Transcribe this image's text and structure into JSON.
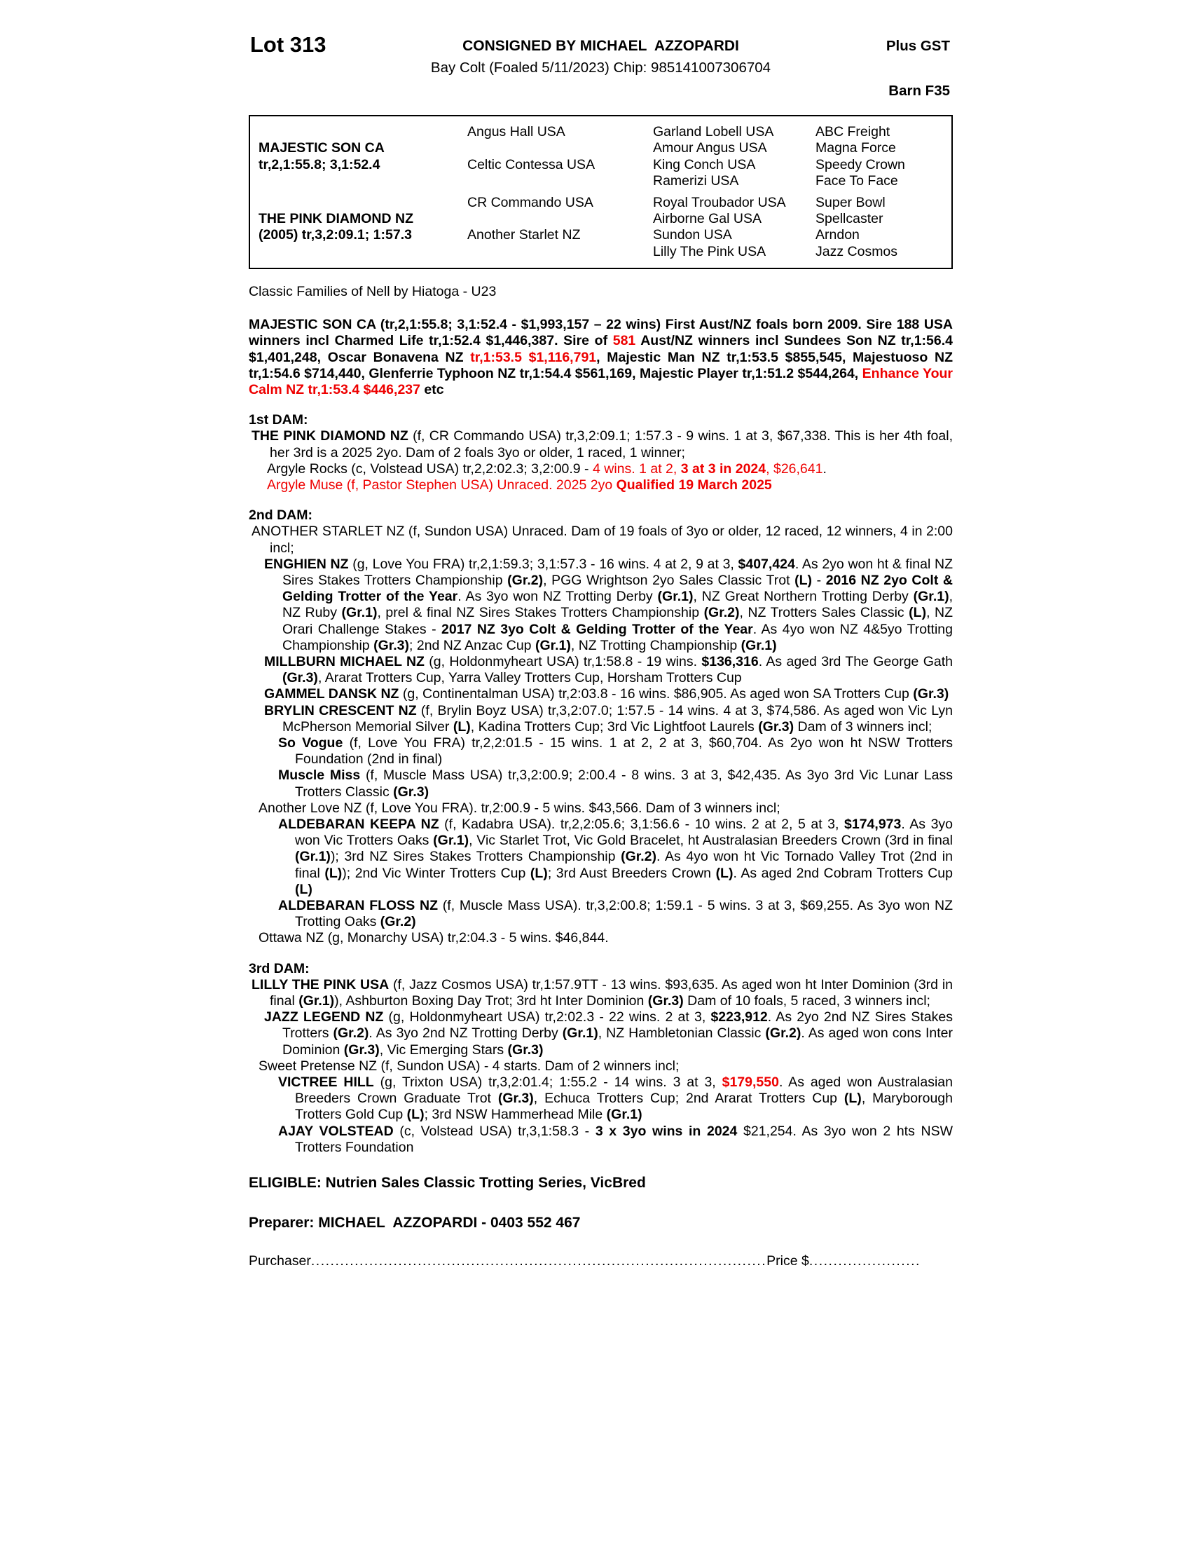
{
  "accent_red": "#ee0000",
  "header": {
    "lot": "Lot 313",
    "consigned": "CONSIGNED BY MICHAEL  AZZOPARDI",
    "description": "Bay Colt (Foaled 5/11/2023) Chip: 985141007306704",
    "plus_gst": "Plus GST",
    "barn": "Barn F35"
  },
  "pedigree": {
    "sire": {
      "name": "MAJESTIC SON CA",
      "record": "tr,2,1:55.8; 3,1:52.4"
    },
    "dam": {
      "name": "THE PINK DIAMOND NZ",
      "record": "(2005) tr,3,2:09.1; 1:57.3"
    },
    "gen2": [
      "Angus Hall USA",
      "Celtic Contessa USA",
      "CR Commando USA",
      "Another Starlet NZ"
    ],
    "gen3": [
      "Garland Lobell USA",
      "Amour Angus USA",
      "King Conch USA",
      "Ramerizi USA",
      "Royal Troubador USA",
      "Airborne Gal USA",
      "Sundon USA",
      "Lilly The Pink USA"
    ],
    "gen4": [
      "ABC Freight",
      "Magna Force",
      "Speedy Crown",
      "Face To Face",
      "Super Bowl",
      "Spellcaster",
      "Arndon",
      "Jazz Cosmos"
    ]
  },
  "family_line": "Classic Families of Nell by Hiatoga - U23",
  "sire_para": [
    "MAJESTIC SON CA (tr,2,1:55.8; 3,1:52.4 - $1,993,157 – 22 wins) First Aust/NZ foals born 2009. Sire 188 USA winners incl Charmed Life tr,1:52.4 $1,446,387. Sire of ",
    "581",
    " Aust/NZ winners incl Sundees Son NZ tr,1:56.4 $1,401,248, Oscar Bonavena NZ ",
    "tr,1:53.5 $1,116,791",
    ", Majestic Man NZ tr,1:53.5 $855,545, Majestuoso NZ tr,1:54.6 $714,440, Glenferrie Typhoon NZ tr,1:54.4 $561,169, Majestic Player tr,1:51.2 $544,264, ",
    "Enhance Your Calm NZ tr,1:53.4 $446,237",
    " etc"
  ],
  "dam1": {
    "heading": "1st DAM:",
    "e1": [
      "THE PINK DIAMOND NZ",
      " (f, CR Commando USA) tr,3,2:09.1; 1:57.3 - 9 wins. 1 at 3, $67,338. This is her 4th foal, her 3rd is a 2025 2yo. Dam of 2 foals 3yo or older, 1 raced, 1 winner;"
    ],
    "e2": [
      "Argyle Rocks (c, Volstead USA) tr,2,2:02.3; 3,2:00.9 - ",
      "4 wins. 1 at 2, ",
      "3 at 3 in 2024",
      ", $26,641",
      "."
    ],
    "e3": [
      "Argyle Muse (f, Pastor Stephen USA) Unraced. 2025 2yo ",
      "Qualified 19 March 2025"
    ]
  },
  "dam2": {
    "heading": "2nd DAM:",
    "e1": [
      "ANOTHER STARLET NZ (f, Sundon USA) Unraced. Dam of 19 foals of 3yo or older, 12 raced, 12 winners, 4 in 2:00 incl;"
    ],
    "e2": [
      "ENGHIEN NZ",
      " (g, Love You FRA) tr,2,1:59.3; 3,1:57.3 - 16 wins. 4 at 2, 9 at 3, ",
      "$407,424",
      ". As 2yo won ht & final NZ Sires Stakes Trotters Championship ",
      "(Gr.2)",
      ", PGG Wrightson 2yo Sales Classic Trot ",
      "(L)",
      " - ",
      "2016 NZ 2yo Colt & Gelding Trotter of the Year",
      ". As 3yo won NZ Trotting Derby ",
      "(Gr.1)",
      ", NZ Great Northern Trotting Derby ",
      "(Gr.1)",
      ", NZ Ruby ",
      "(Gr.1)",
      ", prel & final NZ Sires Stakes Trotters Championship ",
      "(Gr.2)",
      ", NZ Trotters Sales Classic ",
      "(L)",
      ", NZ Orari Challenge Stakes - ",
      "2017 NZ 3yo Colt & Gelding Trotter of the Year",
      ". As 4yo won NZ 4&5yo Trotting Championship ",
      "(Gr.3)",
      "; 2nd NZ Anzac Cup ",
      "(Gr.1)",
      ", NZ Trotting Championship ",
      "(Gr.1)"
    ],
    "e3": [
      "MILLBURN MICHAEL NZ",
      " (g, Holdonmyheart USA) tr,1:58.8 - 19 wins. ",
      "$136,316",
      ". As aged 3rd The George Gath ",
      "(Gr.3)",
      ", Ararat Trotters Cup, Yarra Valley Trotters Cup, Horsham Trotters Cup"
    ],
    "e4": [
      "GAMMEL DANSK NZ",
      " (g, Continentalman USA) tr,2:03.8 - 16 wins. $86,905. As aged won SA Trotters Cup ",
      "(Gr.3)"
    ],
    "e5": [
      "BRYLIN CRESCENT NZ",
      " (f, Brylin Boyz USA) tr,3,2:07.0; 1:57.5 - 14 wins. 4 at 3, $74,586. As aged won Vic Lyn McPherson Memorial Silver ",
      "(L)",
      ", Kadina Trotters Cup; 3rd Vic Lightfoot Laurels ",
      "(Gr.3)",
      "  Dam of 3 winners incl;"
    ],
    "e6": [
      "So Vogue",
      " (f, Love You FRA) tr,2,2:01.5 - 15 wins. 1 at 2, 2 at 3, $60,704. As 2yo won ht NSW Trotters Foundation (2nd in final)"
    ],
    "e7": [
      "Muscle Miss",
      " (f, Muscle Mass USA) tr,3,2:00.9; 2:00.4 - 8 wins. 3 at 3, $42,435. As 3yo 3rd Vic Lunar Lass Trotters Classic ",
      "(Gr.3)"
    ],
    "e8": [
      "Another Love NZ (f, Love You FRA). tr,2:00.9 - 5 wins. $43,566. Dam of 3 winners incl;"
    ],
    "e9": [
      "ALDEBARAN KEEPA NZ",
      " (f, Kadabra USA). tr,2,2:05.6; 3,1:56.6 - 10 wins. 2 at 2, 5 at 3, ",
      "$174,973",
      ". As 3yo won Vic Trotters Oaks ",
      "(Gr.1)",
      ", Vic Starlet Trot, Vic Gold Bracelet, ht Australasian Breeders Crown (3rd in final ",
      "(Gr.1)",
      "); 3rd NZ Sires Stakes Trotters Championship ",
      "(Gr.2)",
      ". As 4yo won ht Vic Tornado Valley Trot (2nd in final ",
      "(L)",
      "); 2nd Vic Winter Trotters Cup ",
      "(L)",
      "; 3rd Aust Breeders Crown ",
      "(L)",
      ". As aged 2nd Cobram Trotters Cup ",
      "(L)"
    ],
    "e10": [
      "ALDEBARAN FLOSS NZ",
      " (f, Muscle Mass USA). tr,3,2:00.8; 1:59.1 - 5 wins. 3 at 3, $69,255. As 3yo won NZ Trotting Oaks ",
      "(Gr.2)"
    ],
    "e11": [
      "Ottawa NZ (g, Monarchy USA) tr,2:04.3 - 5 wins. $46,844."
    ]
  },
  "dam3": {
    "heading": "3rd DAM:",
    "e1": [
      "LILLY THE PINK USA",
      " (f, Jazz Cosmos USA) tr,1:57.9TT - 13 wins. $93,635. As aged won ht Inter Dominion (3rd in final ",
      "(Gr.1)",
      "), Ashburton Boxing Day Trot; 3rd ht Inter Dominion ",
      "(Gr.3)",
      " Dam of 10 foals, 5 raced, 3 winners incl;"
    ],
    "e2": [
      "JAZZ LEGEND NZ",
      " (g, Holdonmyheart USA) tr,2:02.3 - 22 wins. 2 at 3, ",
      "$223,912",
      ". As 2yo 2nd NZ Sires Stakes Trotters ",
      "(Gr.2)",
      ". As 3yo 2nd NZ Trotting Derby ",
      "(Gr.1)",
      ", NZ Hambletonian Classic ",
      "(Gr.2)",
      ". As aged won cons Inter Dominion ",
      "(Gr.3)",
      ", Vic Emerging Stars  ",
      "(Gr.3)"
    ],
    "e3": [
      "Sweet Pretense NZ (f, Sundon USA) - 4 starts. Dam of 2 winners incl;"
    ],
    "e4": [
      "VICTREE HILL",
      " (g, Trixton USA) tr,3,2:01.4; 1:55.2 - 14 wins. 3 at 3, ",
      "$179,550",
      ". As aged won Australasian Breeders Crown Graduate Trot ",
      "(Gr.3)",
      ", Echuca Trotters Cup; 2nd Ararat Trotters Cup ",
      "(L)",
      ", Maryborough Trotters Gold Cup ",
      "(L)",
      "; 3rd NSW Hammerhead Mile ",
      "(Gr.1)"
    ],
    "e5": [
      "AJAY VOLSTEAD",
      " (c, Volstead USA) tr,3,1:58.3 - ",
      "3 x 3yo wins in 2024",
      " $21,254. As 3yo won 2 hts NSW Trotters Foundation"
    ]
  },
  "footer": {
    "eligible": "ELIGIBLE: Nutrien Sales Classic Trotting Series, VicBred",
    "preparer": "Preparer: MICHAEL  AZZOPARDI - 0403 552 467",
    "purchaser_label": "Purchaser",
    "leader1": "..............................................................................................",
    "price_label": "Price $",
    "leader2": "............................................"
  }
}
